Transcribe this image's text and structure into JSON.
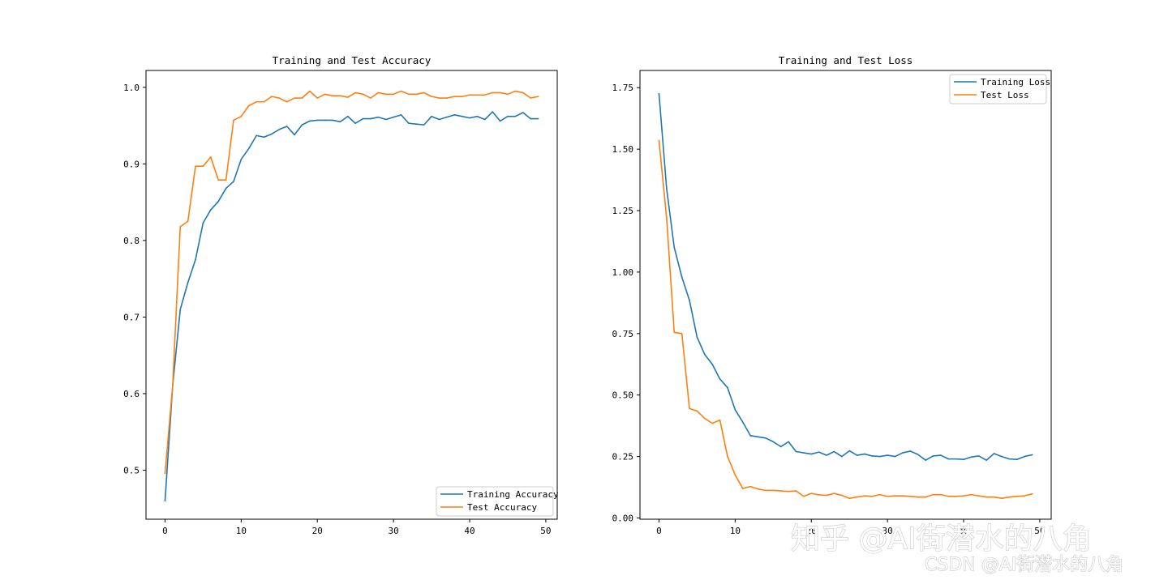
{
  "colors": {
    "training": "#1f77b4",
    "test": "#ff7f0e"
  },
  "watermark": {
    "line1": "知乎 @AI街潜水的八角",
    "line2": "CSDN @AI街潜水的八角"
  },
  "chart_data": [
    {
      "type": "line",
      "title": "Training and Test Accuracy",
      "xlabel": "",
      "ylabel": "",
      "xlim": [
        -2.5,
        51.5
      ],
      "ylim": [
        0.436,
        1.022
      ],
      "xticks": [
        0,
        10,
        20,
        30,
        40,
        50
      ],
      "yticks": [
        0.5,
        0.6,
        0.7,
        0.8,
        0.9,
        1.0
      ],
      "ytick_labels": [
        "0.5",
        "0.6",
        "0.7",
        "0.8",
        "0.9",
        "1.0"
      ],
      "grid": false,
      "legend_position": "lower right",
      "x": [
        0,
        1,
        2,
        3,
        4,
        5,
        6,
        7,
        8,
        9,
        10,
        11,
        12,
        13,
        14,
        15,
        16,
        17,
        18,
        19,
        20,
        21,
        22,
        23,
        24,
        25,
        26,
        27,
        28,
        29,
        30,
        31,
        32,
        33,
        34,
        35,
        36,
        37,
        38,
        39,
        40,
        41,
        42,
        43,
        44,
        45,
        46,
        47,
        48,
        49
      ],
      "series": [
        {
          "name": "Training Accuracy",
          "color": "#1f77b4",
          "values": [
            0.46,
            0.61,
            0.71,
            0.745,
            0.775,
            0.823,
            0.84,
            0.851,
            0.868,
            0.877,
            0.906,
            0.92,
            0.937,
            0.935,
            0.939,
            0.945,
            0.949,
            0.938,
            0.951,
            0.956,
            0.957,
            0.957,
            0.957,
            0.955,
            0.962,
            0.953,
            0.959,
            0.959,
            0.961,
            0.958,
            0.961,
            0.964,
            0.953,
            0.952,
            0.951,
            0.962,
            0.958,
            0.961,
            0.964,
            0.962,
            0.96,
            0.962,
            0.958,
            0.968,
            0.956,
            0.962,
            0.962,
            0.967,
            0.959,
            0.959
          ]
        },
        {
          "name": "Test Accuracy",
          "color": "#ff7f0e",
          "values": [
            0.496,
            0.61,
            0.818,
            0.825,
            0.897,
            0.897,
            0.909,
            0.879,
            0.879,
            0.957,
            0.962,
            0.976,
            0.981,
            0.981,
            0.988,
            0.986,
            0.981,
            0.986,
            0.986,
            0.995,
            0.986,
            0.991,
            0.989,
            0.989,
            0.987,
            0.993,
            0.991,
            0.986,
            0.993,
            0.991,
            0.991,
            0.995,
            0.991,
            0.991,
            0.993,
            0.988,
            0.986,
            0.986,
            0.988,
            0.988,
            0.99,
            0.99,
            0.99,
            0.993,
            0.993,
            0.991,
            0.995,
            0.993,
            0.986,
            0.988
          ]
        }
      ]
    },
    {
      "type": "line",
      "title": "Training and Test Loss",
      "xlabel": "",
      "ylabel": "",
      "xlim": [
        -2.5,
        51.5
      ],
      "ylim": [
        -0.005,
        1.82
      ],
      "xticks": [
        0,
        10,
        20,
        30,
        40,
        50
      ],
      "yticks": [
        0.0,
        0.25,
        0.5,
        0.75,
        1.0,
        1.25,
        1.5,
        1.75
      ],
      "ytick_labels": [
        "0.00",
        "0.25",
        "0.50",
        "0.75",
        "1.00",
        "1.25",
        "1.50",
        "1.75"
      ],
      "grid": false,
      "legend_position": "upper right",
      "x": [
        0,
        1,
        2,
        3,
        4,
        5,
        6,
        7,
        8,
        9,
        10,
        11,
        12,
        13,
        14,
        15,
        16,
        17,
        18,
        19,
        20,
        21,
        22,
        23,
        24,
        25,
        26,
        27,
        28,
        29,
        30,
        31,
        32,
        33,
        34,
        35,
        36,
        37,
        38,
        39,
        40,
        41,
        42,
        43,
        44,
        45,
        46,
        47,
        48,
        49
      ],
      "series": [
        {
          "name": "Training Loss",
          "color": "#1f77b4",
          "values": [
            1.725,
            1.34,
            1.1,
            0.98,
            0.885,
            0.735,
            0.665,
            0.625,
            0.565,
            0.53,
            0.44,
            0.39,
            0.335,
            0.33,
            0.325,
            0.31,
            0.29,
            0.31,
            0.27,
            0.265,
            0.26,
            0.268,
            0.255,
            0.27,
            0.25,
            0.273,
            0.255,
            0.26,
            0.252,
            0.25,
            0.255,
            0.25,
            0.265,
            0.272,
            0.258,
            0.235,
            0.252,
            0.255,
            0.24,
            0.24,
            0.238,
            0.248,
            0.252,
            0.235,
            0.262,
            0.25,
            0.24,
            0.238,
            0.25,
            0.257
          ]
        },
        {
          "name": "Test Loss",
          "color": "#ff7f0e",
          "values": [
            1.535,
            1.22,
            0.755,
            0.75,
            0.445,
            0.435,
            0.405,
            0.385,
            0.398,
            0.25,
            0.175,
            0.12,
            0.128,
            0.118,
            0.112,
            0.112,
            0.11,
            0.108,
            0.11,
            0.088,
            0.1,
            0.094,
            0.092,
            0.1,
            0.092,
            0.08,
            0.085,
            0.09,
            0.088,
            0.095,
            0.088,
            0.09,
            0.09,
            0.088,
            0.085,
            0.085,
            0.095,
            0.095,
            0.088,
            0.088,
            0.09,
            0.095,
            0.09,
            0.085,
            0.085,
            0.08,
            0.085,
            0.088,
            0.09,
            0.098
          ]
        }
      ]
    }
  ]
}
